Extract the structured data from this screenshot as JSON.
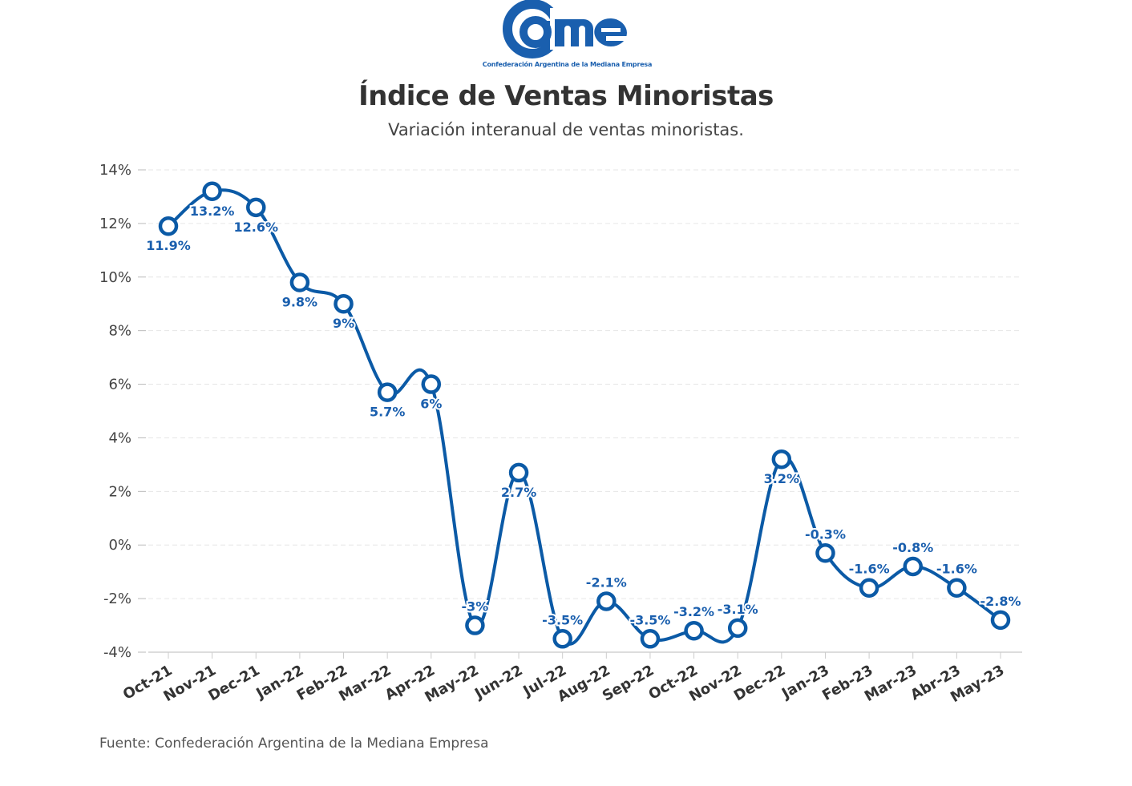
{
  "logo": {
    "text": "cAme",
    "caption": "Confederación Argentina de la Mediana Empresa"
  },
  "header": {
    "title": "Índice de Ventas Minoristas",
    "subtitle": "Variación interanual de ventas minoristas."
  },
  "footer": {
    "source": "Fuente: Confederación Argentina de la Mediana Empresa"
  },
  "chart_data": {
    "type": "line",
    "title": "Índice de Ventas Minoristas",
    "subtitle": "Variación interanual de ventas minoristas.",
    "categories": [
      "Oct-21",
      "Nov-21",
      "Dec-21",
      "Jan-22",
      "Feb-22",
      "Mar-22",
      "Apr-22",
      "May-22",
      "Jun-22",
      "Jul-22",
      "Aug-22",
      "Sep-22",
      "Oct-22",
      "Nov-22",
      "Dec-22",
      "Jan-23",
      "Feb-23",
      "Mar-23",
      "Abr-23",
      "May-23"
    ],
    "values": [
      11.9,
      13.2,
      12.6,
      9.8,
      9,
      5.7,
      6,
      -3,
      2.7,
      -3.5,
      -2.1,
      -3.5,
      -3.2,
      -3.1,
      3.2,
      -0.3,
      -1.6,
      -0.8,
      -1.6,
      -2.8
    ],
    "data_labels": [
      "11.9%",
      "13.2%",
      "12.6%",
      "9.8%",
      "9%",
      "5.7%",
      "6%",
      "-3%",
      "2.7%",
      "-3.5%",
      "-2.1%",
      "-3.5%",
      "-3.2%",
      "-3.1%",
      "3.2%",
      "-0.3%",
      "-1.6%",
      "-0.8%",
      "-1.6%",
      "-2.8%"
    ],
    "yticks": [
      "-4%",
      "-2%",
      "0%",
      "2%",
      "4%",
      "6%",
      "8%",
      "10%",
      "12%",
      "14%"
    ],
    "ylim": [
      -4,
      14
    ],
    "xlabel": "",
    "ylabel": "",
    "grid": true,
    "line_style": "smooth",
    "color": "#0b5aa6"
  }
}
